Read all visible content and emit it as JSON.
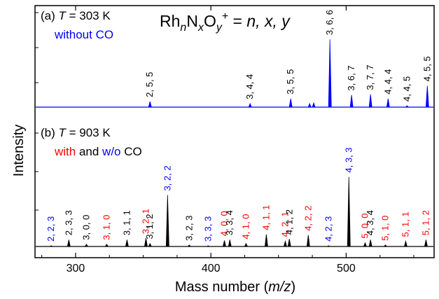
{
  "chart_data": {
    "type": "line",
    "xlabel": "Mass number (m/z)",
    "ylabel": "Intensity",
    "xlim": [
      270,
      565
    ],
    "x_ticks": [
      300,
      400,
      500
    ],
    "formula_label": "RhnNxOy+ = n, x, y",
    "panels": [
      {
        "id": "a",
        "title": "(a) T = 303 K",
        "legend": [
          {
            "text": "without CO",
            "color": "#0000ff"
          }
        ],
        "series": [
          {
            "name": "without CO",
            "color": "#0000ff",
            "peaks": [
              {
                "x": 355,
                "y": 0.08,
                "label": "2, 5, 5",
                "label_color": "#000000"
              },
              {
                "x": 429,
                "y": 0.05,
                "label": "3, 4, 4",
                "label_color": "#000000"
              },
              {
                "x": 459,
                "y": 0.12,
                "label": "3, 5, 5",
                "label_color": "#000000"
              },
              {
                "x": 473,
                "y": 0.05,
                "label": "",
                "label_color": "#000000"
              },
              {
                "x": 476,
                "y": 0.06,
                "label": "",
                "label_color": "#000000"
              },
              {
                "x": 488,
                "y": 0.95,
                "label": "3, 6, 6",
                "label_color": "#000000"
              },
              {
                "x": 504,
                "y": 0.17,
                "label": "3, 6, 7",
                "label_color": "#000000"
              },
              {
                "x": 518,
                "y": 0.18,
                "label": "3, 7, 7",
                "label_color": "#000000"
              },
              {
                "x": 531,
                "y": 0.12,
                "label": "4, 4, 4",
                "label_color": "#000000"
              },
              {
                "x": 545,
                "y": 0.02,
                "label": "4, 4, 5",
                "label_color": "#000000"
              },
              {
                "x": 560,
                "y": 0.3,
                "label": "4, 5, 5",
                "label_color": "#000000"
              }
            ]
          }
        ]
      },
      {
        "id": "b",
        "title": "(b) T = 903 K",
        "legend": [
          {
            "text": "with",
            "color": "#ff0000"
          },
          {
            "text": " and ",
            "color": "#000000"
          },
          {
            "text": "w/o",
            "color": "#0000ff"
          },
          {
            "text": " CO",
            "color": "#000000"
          }
        ],
        "series": [
          {
            "name": "with CO",
            "color": "#000000",
            "peaks": [
              {
                "x": 282,
                "y": 0.01,
                "label": "2, 2, 3",
                "label_color": "#0000ff"
              },
              {
                "x": 295,
                "y": 0.09,
                "label": "2, 3, 3",
                "label_color": "#000000"
              },
              {
                "x": 308,
                "y": 0.03,
                "label": "3, 0, 0",
                "label_color": "#000000"
              },
              {
                "x": 323,
                "y": 0.03,
                "label": "3, 1, 0",
                "label_color": "#ff0000"
              },
              {
                "x": 338,
                "y": 0.09,
                "label": "3, 1, 1",
                "label_color": "#000000"
              },
              {
                "x": 352,
                "y": 0.11,
                "label": "3, 2, 1",
                "label_color": "#ff0000"
              },
              {
                "x": 355,
                "y": 0.04,
                "label": "3, 1, 2",
                "label_color": "#000000"
              },
              {
                "x": 368,
                "y": 0.68,
                "label": "3, 2, 2",
                "label_color": "#0000ff"
              },
              {
                "x": 384,
                "y": 0.02,
                "label": "3, 2, 3",
                "label_color": "#000000"
              },
              {
                "x": 398,
                "y": 0.01,
                "label": "3, 3, 3",
                "label_color": "#0000ff"
              },
              {
                "x": 410,
                "y": 0.08,
                "label": "4, 0, 0",
                "label_color": "#ff0000"
              },
              {
                "x": 414,
                "y": 0.09,
                "label": "3, 3, 4",
                "label_color": "#000000"
              },
              {
                "x": 426,
                "y": 0.04,
                "label": "4, 1, 0",
                "label_color": "#ff0000"
              },
              {
                "x": 441,
                "y": 0.16,
                "label": "4, 1, 1",
                "label_color": "#ff0000"
              },
              {
                "x": 455,
                "y": 0.07,
                "label": "4, 2, 1",
                "label_color": "#ff0000"
              },
              {
                "x": 458,
                "y": 0.1,
                "label": "4, 1, 2",
                "label_color": "#000000"
              },
              {
                "x": 472,
                "y": 0.15,
                "label": "4, 2, 2",
                "label_color": "#ff0000"
              },
              {
                "x": 487,
                "y": 0.01,
                "label": "4, 2, 3",
                "label_color": "#0000ff"
              },
              {
                "x": 502,
                "y": 0.92,
                "label": "4, 3, 3",
                "label_color": "#0000ff"
              },
              {
                "x": 514,
                "y": 0.05,
                "label": "5, 0, 0",
                "label_color": "#ff0000"
              },
              {
                "x": 518,
                "y": 0.09,
                "label": "4, 3, 4",
                "label_color": "#000000"
              },
              {
                "x": 529,
                "y": 0.02,
                "label": "5, 1, 0",
                "label_color": "#ff0000"
              },
              {
                "x": 544,
                "y": 0.07,
                "label": "5, 1, 1",
                "label_color": "#ff0000"
              },
              {
                "x": 559,
                "y": 0.09,
                "label": "5, 1, 2",
                "label_color": "#ff0000"
              }
            ]
          }
        ]
      }
    ]
  }
}
